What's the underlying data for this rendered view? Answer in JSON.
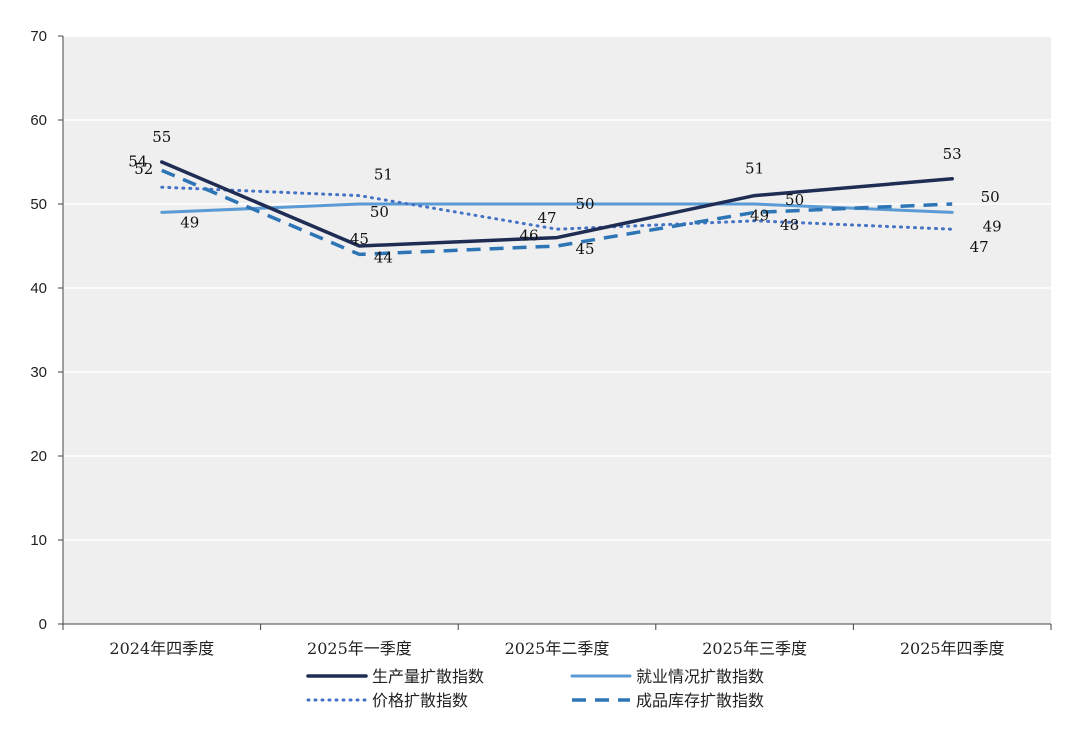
{
  "chart_data": {
    "type": "line",
    "categories": [
      "2024年四季度",
      "2025年一季度",
      "2025年二季度",
      "2025年三季度",
      "2025年四季度"
    ],
    "ylim": [
      0,
      70
    ],
    "yticks": [
      0,
      10,
      20,
      30,
      40,
      50,
      60,
      70
    ],
    "grid": "horizontal",
    "legend_position": "bottom",
    "series": [
      {
        "name": "生产量扩散指数",
        "values": [
          55,
          45,
          46,
          51,
          53
        ],
        "color": "#1f2d54",
        "style": "solid-thick",
        "labels": [
          "55",
          "45",
          "46",
          "51",
          "53"
        ]
      },
      {
        "name": "就业情况扩散指数",
        "values": [
          49,
          50,
          50,
          50,
          49
        ],
        "color": "#5b9bd5",
        "style": "solid",
        "labels": [
          "49",
          "50",
          "50",
          "50",
          "49"
        ]
      },
      {
        "name": "价格扩散指数",
        "values": [
          52,
          51,
          47,
          48,
          47
        ],
        "color": "#4472c4",
        "style": "dotted",
        "labels": [
          "52",
          "51",
          "47",
          "48",
          "47"
        ]
      },
      {
        "name": "成品库存扩散指数",
        "values": [
          54,
          44,
          45,
          49,
          50
        ],
        "color": "#2e75b6",
        "style": "dashed",
        "labels": [
          "54",
          "44",
          "45",
          "49",
          "50"
        ]
      }
    ]
  }
}
